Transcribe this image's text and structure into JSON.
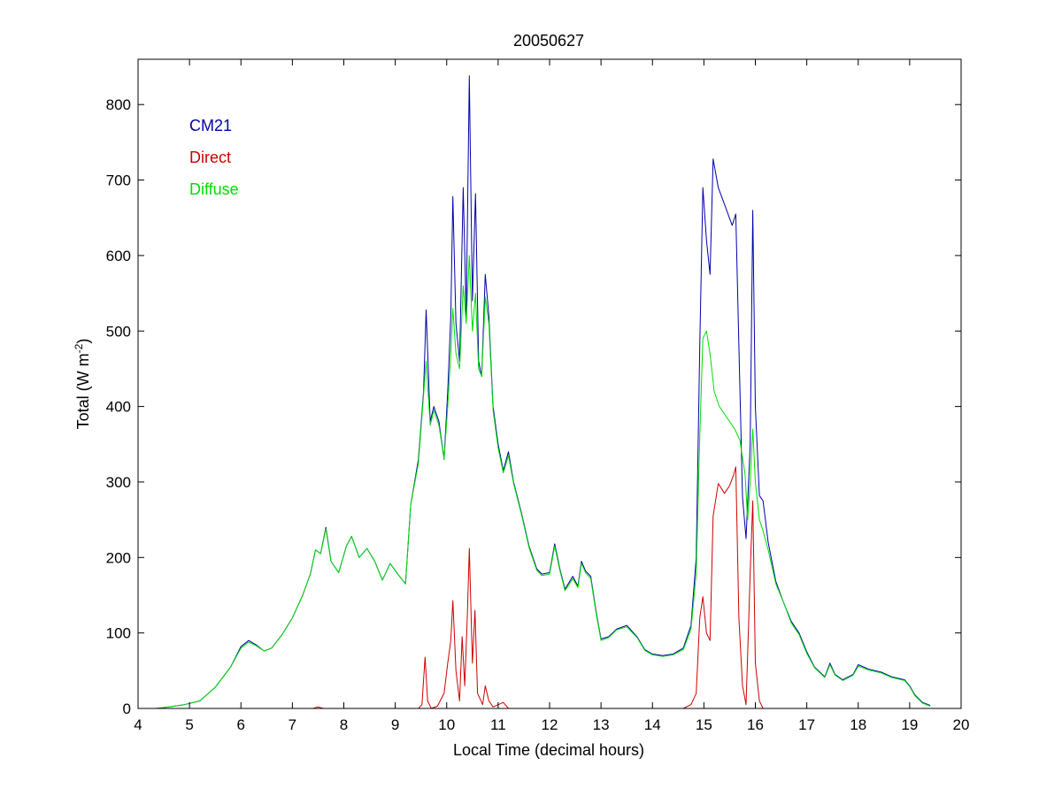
{
  "chart_data": {
    "type": "line",
    "title": "20050627",
    "xlabel": "Local Time (decimal hours)",
    "ylabel_main": "Total (W m",
    "ylabel_sup": "-2",
    "ylabel_end": ")",
    "xlim": [
      4,
      20
    ],
    "ylim": [
      0,
      860
    ],
    "xticks": [
      4,
      5,
      6,
      7,
      8,
      9,
      10,
      11,
      12,
      13,
      14,
      15,
      16,
      17,
      18,
      19,
      20
    ],
    "yticks": [
      0,
      100,
      200,
      300,
      400,
      500,
      600,
      700,
      800
    ],
    "grid": false,
    "legend_position": "top-left",
    "series": [
      {
        "name": "CM21",
        "color": "#0000a8",
        "points": [
          [
            4.35,
            0
          ],
          [
            4.6,
            2
          ],
          [
            4.9,
            5
          ],
          [
            5.2,
            10
          ],
          [
            5.5,
            28
          ],
          [
            5.8,
            55
          ],
          [
            6.0,
            82
          ],
          [
            6.15,
            90
          ],
          [
            6.3,
            84
          ],
          [
            6.45,
            76
          ],
          [
            6.6,
            80
          ],
          [
            6.8,
            98
          ],
          [
            7.0,
            120
          ],
          [
            7.2,
            150
          ],
          [
            7.35,
            178
          ],
          [
            7.45,
            210
          ],
          [
            7.55,
            205
          ],
          [
            7.65,
            240
          ],
          [
            7.75,
            195
          ],
          [
            7.9,
            180
          ],
          [
            8.05,
            215
          ],
          [
            8.15,
            228
          ],
          [
            8.3,
            200
          ],
          [
            8.45,
            212
          ],
          [
            8.6,
            195
          ],
          [
            8.75,
            170
          ],
          [
            8.9,
            192
          ],
          [
            9.05,
            178
          ],
          [
            9.2,
            165
          ],
          [
            9.3,
            270
          ],
          [
            9.45,
            330
          ],
          [
            9.55,
            420
          ],
          [
            9.6,
            528
          ],
          [
            9.68,
            380
          ],
          [
            9.75,
            400
          ],
          [
            9.85,
            380
          ],
          [
            9.95,
            330
          ],
          [
            10.02,
            420
          ],
          [
            10.08,
            520
          ],
          [
            10.12,
            678
          ],
          [
            10.18,
            510
          ],
          [
            10.25,
            460
          ],
          [
            10.32,
            690
          ],
          [
            10.38,
            520
          ],
          [
            10.44,
            838
          ],
          [
            10.5,
            540
          ],
          [
            10.56,
            682
          ],
          [
            10.62,
            460
          ],
          [
            10.68,
            440
          ],
          [
            10.75,
            575
          ],
          [
            10.82,
            520
          ],
          [
            10.9,
            400
          ],
          [
            11.0,
            350
          ],
          [
            11.1,
            315
          ],
          [
            11.2,
            340
          ],
          [
            11.3,
            300
          ],
          [
            11.45,
            260
          ],
          [
            11.6,
            215
          ],
          [
            11.75,
            185
          ],
          [
            11.85,
            178
          ],
          [
            12.0,
            180
          ],
          [
            12.1,
            218
          ],
          [
            12.2,
            185
          ],
          [
            12.3,
            158
          ],
          [
            12.45,
            175
          ],
          [
            12.55,
            162
          ],
          [
            12.62,
            195
          ],
          [
            12.7,
            182
          ],
          [
            12.8,
            175
          ],
          [
            12.9,
            130
          ],
          [
            13.0,
            92
          ],
          [
            13.15,
            95
          ],
          [
            13.3,
            105
          ],
          [
            13.5,
            110
          ],
          [
            13.7,
            95
          ],
          [
            13.85,
            78
          ],
          [
            14.0,
            72
          ],
          [
            14.2,
            70
          ],
          [
            14.4,
            72
          ],
          [
            14.6,
            80
          ],
          [
            14.75,
            110
          ],
          [
            14.85,
            200
          ],
          [
            14.92,
            480
          ],
          [
            14.98,
            690
          ],
          [
            15.05,
            620
          ],
          [
            15.12,
            575
          ],
          [
            15.18,
            728
          ],
          [
            15.28,
            690
          ],
          [
            15.4,
            668
          ],
          [
            15.55,
            640
          ],
          [
            15.62,
            655
          ],
          [
            15.68,
            480
          ],
          [
            15.75,
            280
          ],
          [
            15.82,
            225
          ],
          [
            15.9,
            350
          ],
          [
            15.95,
            660
          ],
          [
            16.0,
            400
          ],
          [
            16.08,
            282
          ],
          [
            16.15,
            275
          ],
          [
            16.25,
            220
          ],
          [
            16.4,
            168
          ],
          [
            16.55,
            140
          ],
          [
            16.7,
            115
          ],
          [
            16.85,
            100
          ],
          [
            17.0,
            75
          ],
          [
            17.15,
            55
          ],
          [
            17.35,
            42
          ],
          [
            17.45,
            60
          ],
          [
            17.55,
            45
          ],
          [
            17.7,
            38
          ],
          [
            17.9,
            45
          ],
          [
            18.0,
            58
          ],
          [
            18.2,
            52
          ],
          [
            18.45,
            48
          ],
          [
            18.65,
            42
          ],
          [
            18.9,
            38
          ],
          [
            19.0,
            30
          ],
          [
            19.1,
            18
          ],
          [
            19.25,
            8
          ],
          [
            19.4,
            4
          ]
        ]
      },
      {
        "name": "Direct",
        "color": "#cc0000",
        "points": [
          [
            5.2,
            0
          ],
          [
            7.4,
            0
          ],
          [
            7.5,
            2
          ],
          [
            7.6,
            0
          ],
          [
            9.45,
            0
          ],
          [
            9.52,
            5
          ],
          [
            9.58,
            68
          ],
          [
            9.63,
            10
          ],
          [
            9.7,
            0
          ],
          [
            9.82,
            3
          ],
          [
            9.95,
            20
          ],
          [
            10.02,
            60
          ],
          [
            10.08,
            90
          ],
          [
            10.12,
            143
          ],
          [
            10.18,
            50
          ],
          [
            10.25,
            10
          ],
          [
            10.3,
            95
          ],
          [
            10.35,
            30
          ],
          [
            10.4,
            120
          ],
          [
            10.44,
            212
          ],
          [
            10.5,
            60
          ],
          [
            10.55,
            130
          ],
          [
            10.6,
            20
          ],
          [
            10.7,
            5
          ],
          [
            10.75,
            30
          ],
          [
            10.82,
            10
          ],
          [
            10.9,
            2
          ],
          [
            11.1,
            8
          ],
          [
            11.2,
            0
          ],
          [
            14.6,
            0
          ],
          [
            14.75,
            5
          ],
          [
            14.85,
            20
          ],
          [
            14.92,
            120
          ],
          [
            14.98,
            148
          ],
          [
            15.05,
            100
          ],
          [
            15.12,
            90
          ],
          [
            15.18,
            255
          ],
          [
            15.28,
            298
          ],
          [
            15.4,
            285
          ],
          [
            15.5,
            295
          ],
          [
            15.58,
            310
          ],
          [
            15.62,
            320
          ],
          [
            15.68,
            120
          ],
          [
            15.75,
            30
          ],
          [
            15.82,
            5
          ],
          [
            15.9,
            180
          ],
          [
            15.95,
            275
          ],
          [
            16.0,
            60
          ],
          [
            16.08,
            10
          ],
          [
            16.15,
            0
          ],
          [
            19.4,
            0
          ]
        ]
      },
      {
        "name": "Diffuse",
        "color": "#00dd00",
        "points": [
          [
            4.35,
            0
          ],
          [
            4.6,
            2
          ],
          [
            4.9,
            5
          ],
          [
            5.2,
            10
          ],
          [
            5.5,
            28
          ],
          [
            5.8,
            55
          ],
          [
            6.0,
            80
          ],
          [
            6.15,
            88
          ],
          [
            6.3,
            83
          ],
          [
            6.45,
            76
          ],
          [
            6.6,
            80
          ],
          [
            6.8,
            98
          ],
          [
            7.0,
            120
          ],
          [
            7.2,
            150
          ],
          [
            7.35,
            178
          ],
          [
            7.45,
            210
          ],
          [
            7.55,
            205
          ],
          [
            7.65,
            238
          ],
          [
            7.75,
            195
          ],
          [
            7.9,
            180
          ],
          [
            8.05,
            215
          ],
          [
            8.15,
            228
          ],
          [
            8.3,
            200
          ],
          [
            8.45,
            212
          ],
          [
            8.6,
            195
          ],
          [
            8.75,
            170
          ],
          [
            8.9,
            192
          ],
          [
            9.05,
            178
          ],
          [
            9.2,
            165
          ],
          [
            9.3,
            270
          ],
          [
            9.45,
            325
          ],
          [
            9.55,
            415
          ],
          [
            9.6,
            460
          ],
          [
            9.68,
            375
          ],
          [
            9.75,
            395
          ],
          [
            9.85,
            375
          ],
          [
            9.95,
            330
          ],
          [
            10.02,
            400
          ],
          [
            10.08,
            470
          ],
          [
            10.12,
            530
          ],
          [
            10.18,
            470
          ],
          [
            10.25,
            450
          ],
          [
            10.32,
            560
          ],
          [
            10.38,
            510
          ],
          [
            10.44,
            600
          ],
          [
            10.5,
            500
          ],
          [
            10.56,
            550
          ],
          [
            10.62,
            450
          ],
          [
            10.68,
            440
          ],
          [
            10.75,
            545
          ],
          [
            10.82,
            510
          ],
          [
            10.9,
            395
          ],
          [
            11.0,
            345
          ],
          [
            11.1,
            312
          ],
          [
            11.2,
            335
          ],
          [
            11.3,
            298
          ],
          [
            11.45,
            258
          ],
          [
            11.6,
            213
          ],
          [
            11.75,
            183
          ],
          [
            11.85,
            176
          ],
          [
            12.0,
            178
          ],
          [
            12.1,
            215
          ],
          [
            12.2,
            183
          ],
          [
            12.3,
            156
          ],
          [
            12.45,
            172
          ],
          [
            12.55,
            160
          ],
          [
            12.62,
            192
          ],
          [
            12.7,
            180
          ],
          [
            12.8,
            172
          ],
          [
            12.9,
            128
          ],
          [
            13.0,
            90
          ],
          [
            13.15,
            94
          ],
          [
            13.3,
            104
          ],
          [
            13.5,
            108
          ],
          [
            13.7,
            94
          ],
          [
            13.85,
            77
          ],
          [
            14.0,
            71
          ],
          [
            14.2,
            69
          ],
          [
            14.4,
            71
          ],
          [
            14.6,
            78
          ],
          [
            14.75,
            105
          ],
          [
            14.85,
            180
          ],
          [
            14.92,
            360
          ],
          [
            14.98,
            490
          ],
          [
            15.05,
            500
          ],
          [
            15.12,
            470
          ],
          [
            15.2,
            420
          ],
          [
            15.3,
            400
          ],
          [
            15.45,
            385
          ],
          [
            15.6,
            370
          ],
          [
            15.7,
            355
          ],
          [
            15.8,
            310
          ],
          [
            15.85,
            250
          ],
          [
            15.9,
            300
          ],
          [
            15.95,
            370
          ],
          [
            16.0,
            300
          ],
          [
            16.08,
            250
          ],
          [
            16.15,
            235
          ],
          [
            16.25,
            210
          ],
          [
            16.4,
            165
          ],
          [
            16.55,
            140
          ],
          [
            16.7,
            113
          ],
          [
            16.85,
            98
          ],
          [
            17.0,
            73
          ],
          [
            17.15,
            54
          ],
          [
            17.35,
            41
          ],
          [
            17.45,
            58
          ],
          [
            17.55,
            44
          ],
          [
            17.7,
            37
          ],
          [
            17.9,
            44
          ],
          [
            18.0,
            56
          ],
          [
            18.2,
            51
          ],
          [
            18.45,
            47
          ],
          [
            18.65,
            41
          ],
          [
            18.9,
            37
          ],
          [
            19.0,
            29
          ],
          [
            19.1,
            17
          ],
          [
            19.25,
            7
          ],
          [
            19.4,
            3
          ]
        ]
      }
    ]
  }
}
